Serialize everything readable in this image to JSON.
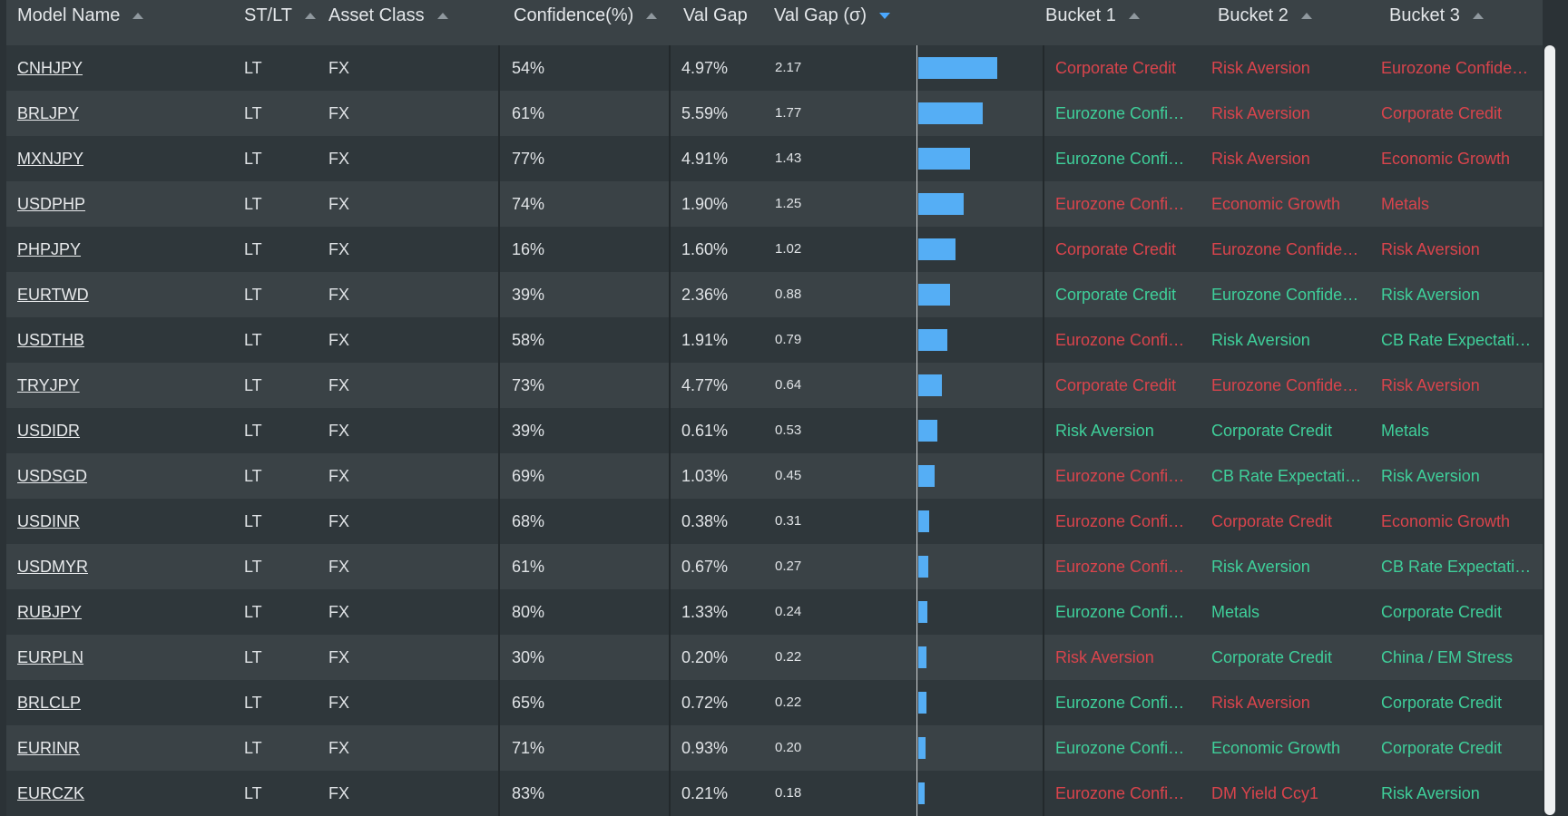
{
  "columns": {
    "model_name": "Model Name",
    "st_lt": "ST/LT",
    "asset_class": "Asset Class",
    "confidence": "Confidence(%)",
    "val_gap": "Val Gap",
    "val_gap_sigma": "Val Gap (σ)",
    "bucket1": "Bucket 1",
    "bucket2": "Bucket 2",
    "bucket3": "Bucket 3"
  },
  "sort": {
    "active_column": "val_gap_sigma",
    "direction": "desc"
  },
  "colors": {
    "green": "#3fcf9a",
    "red": "#d9444c",
    "bar": "#55aef5"
  },
  "bar_max_sigma": 2.17,
  "rows": [
    {
      "model": "CNHJPY",
      "st_lt": "LT",
      "asset": "FX",
      "confidence": "54%",
      "val_gap": "4.97%",
      "sigma": "2.17",
      "b1": "Corporate Credit",
      "b1c": "red",
      "b2": "Risk Aversion",
      "b2c": "red",
      "b3": "Eurozone Confidence",
      "b3c": "red"
    },
    {
      "model": "BRLJPY",
      "st_lt": "LT",
      "asset": "FX",
      "confidence": "61%",
      "val_gap": "5.59%",
      "sigma": "1.77",
      "b1": "Eurozone Confidence",
      "b1c": "green",
      "b2": "Risk Aversion",
      "b2c": "red",
      "b3": "Corporate Credit",
      "b3c": "red"
    },
    {
      "model": "MXNJPY",
      "st_lt": "LT",
      "asset": "FX",
      "confidence": "77%",
      "val_gap": "4.91%",
      "sigma": "1.43",
      "b1": "Eurozone Confidence",
      "b1c": "green",
      "b2": "Risk Aversion",
      "b2c": "red",
      "b3": "Economic Growth",
      "b3c": "red"
    },
    {
      "model": "USDPHP",
      "st_lt": "LT",
      "asset": "FX",
      "confidence": "74%",
      "val_gap": "1.90%",
      "sigma": "1.25",
      "b1": "Eurozone Confidence",
      "b1c": "red",
      "b2": "Economic Growth",
      "b2c": "red",
      "b3": "Metals",
      "b3c": "red"
    },
    {
      "model": "PHPJPY",
      "st_lt": "LT",
      "asset": "FX",
      "confidence": "16%",
      "val_gap": "1.60%",
      "sigma": "1.02",
      "b1": "Corporate Credit",
      "b1c": "red",
      "b2": "Eurozone Confidence",
      "b2c": "red",
      "b3": "Risk Aversion",
      "b3c": "red"
    },
    {
      "model": "EURTWD",
      "st_lt": "LT",
      "asset": "FX",
      "confidence": "39%",
      "val_gap": "2.36%",
      "sigma": "0.88",
      "b1": "Corporate Credit",
      "b1c": "green",
      "b2": "Eurozone Confidence",
      "b2c": "green",
      "b3": "Risk Aversion",
      "b3c": "green"
    },
    {
      "model": "USDTHB",
      "st_lt": "LT",
      "asset": "FX",
      "confidence": "58%",
      "val_gap": "1.91%",
      "sigma": "0.79",
      "b1": "Eurozone Confidence",
      "b1c": "red",
      "b2": "Risk Aversion",
      "b2c": "green",
      "b3": "CB Rate Expectations",
      "b3c": "green"
    },
    {
      "model": "TRYJPY",
      "st_lt": "LT",
      "asset": "FX",
      "confidence": "73%",
      "val_gap": "4.77%",
      "sigma": "0.64",
      "b1": "Corporate Credit",
      "b1c": "red",
      "b2": "Eurozone Confidence",
      "b2c": "red",
      "b3": "Risk Aversion",
      "b3c": "red"
    },
    {
      "model": "USDIDR",
      "st_lt": "LT",
      "asset": "FX",
      "confidence": "39%",
      "val_gap": "0.61%",
      "sigma": "0.53",
      "b1": "Risk Aversion",
      "b1c": "green",
      "b2": "Corporate Credit",
      "b2c": "green",
      "b3": "Metals",
      "b3c": "green"
    },
    {
      "model": "USDSGD",
      "st_lt": "LT",
      "asset": "FX",
      "confidence": "69%",
      "val_gap": "1.03%",
      "sigma": "0.45",
      "b1": "Eurozone Confidence",
      "b1c": "red",
      "b2": "CB Rate Expectations",
      "b2c": "green",
      "b3": "Risk Aversion",
      "b3c": "green"
    },
    {
      "model": "USDINR",
      "st_lt": "LT",
      "asset": "FX",
      "confidence": "68%",
      "val_gap": "0.38%",
      "sigma": "0.31",
      "b1": "Eurozone Confidence",
      "b1c": "red",
      "b2": "Corporate Credit",
      "b2c": "red",
      "b3": "Economic Growth",
      "b3c": "red"
    },
    {
      "model": "USDMYR",
      "st_lt": "LT",
      "asset": "FX",
      "confidence": "61%",
      "val_gap": "0.67%",
      "sigma": "0.27",
      "b1": "Eurozone Confidence",
      "b1c": "red",
      "b2": "Risk Aversion",
      "b2c": "green",
      "b3": "CB Rate Expectations",
      "b3c": "green"
    },
    {
      "model": "RUBJPY",
      "st_lt": "LT",
      "asset": "FX",
      "confidence": "80%",
      "val_gap": "1.33%",
      "sigma": "0.24",
      "b1": "Eurozone Confidence",
      "b1c": "green",
      "b2": "Metals",
      "b2c": "green",
      "b3": "Corporate Credit",
      "b3c": "green"
    },
    {
      "model": "EURPLN",
      "st_lt": "LT",
      "asset": "FX",
      "confidence": "30%",
      "val_gap": "0.20%",
      "sigma": "0.22",
      "b1": "Risk Aversion",
      "b1c": "red",
      "b2": "Corporate Credit",
      "b2c": "green",
      "b3": "China / EM Stress",
      "b3c": "green"
    },
    {
      "model": "BRLCLP",
      "st_lt": "LT",
      "asset": "FX",
      "confidence": "65%",
      "val_gap": "0.72%",
      "sigma": "0.22",
      "b1": "Eurozone Confidence",
      "b1c": "green",
      "b2": "Risk Aversion",
      "b2c": "red",
      "b3": "Corporate Credit",
      "b3c": "green"
    },
    {
      "model": "EURINR",
      "st_lt": "LT",
      "asset": "FX",
      "confidence": "71%",
      "val_gap": "0.93%",
      "sigma": "0.20",
      "b1": "Eurozone Confidence",
      "b1c": "green",
      "b2": "Economic Growth",
      "b2c": "green",
      "b3": "Corporate Credit",
      "b3c": "green"
    },
    {
      "model": "EURCZK",
      "st_lt": "LT",
      "asset": "FX",
      "confidence": "83%",
      "val_gap": "0.21%",
      "sigma": "0.18",
      "b1": "Eurozone Confidence",
      "b1c": "red",
      "b2": "DM Yield Ccy1",
      "b2c": "red",
      "b3": "Risk Aversion",
      "b3c": "green"
    }
  ]
}
